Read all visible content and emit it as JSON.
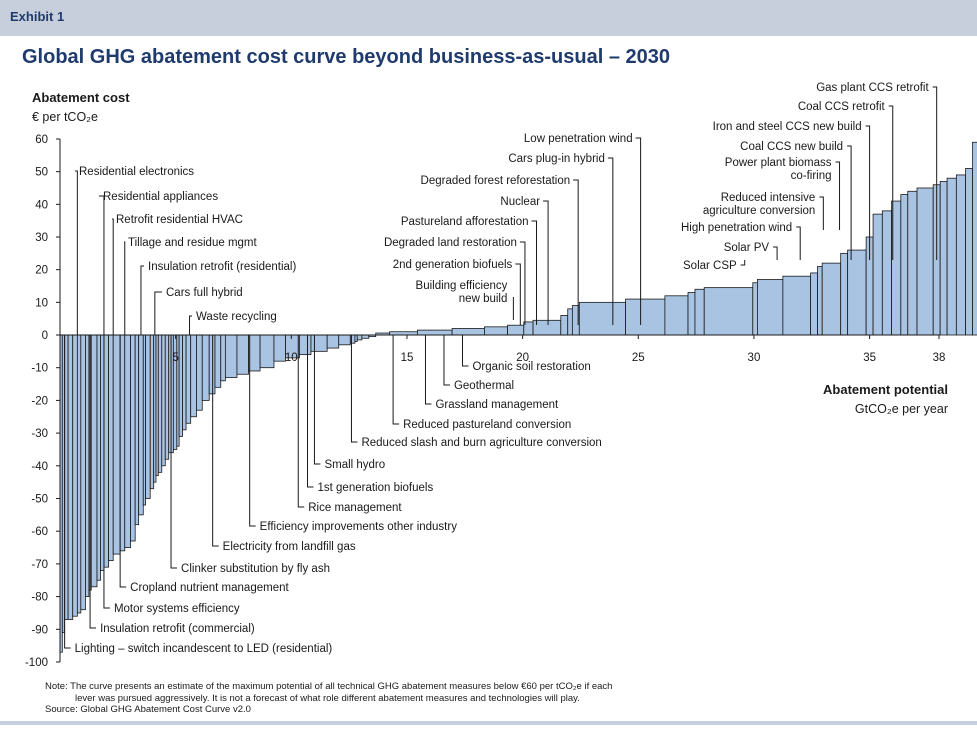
{
  "header": {
    "exhibit": "Exhibit 1"
  },
  "title": "Global GHG abatement cost curve beyond business-as-usual – 2030",
  "colors": {
    "bar_fill": "#a9c3e3",
    "bar_stroke": "#1a1a1a",
    "title": "#1f3b6e",
    "band": "#c6cfdb"
  },
  "chart_data": {
    "type": "bar",
    "variable_width": true,
    "ylabel": "Abatement cost",
    "ylabel_unit": "€ per tCO₂e",
    "xlabel": "Abatement potential",
    "xlabel_unit": "GtCO₂e per year",
    "ylim": [
      -100,
      60
    ],
    "xlim": [
      0,
      38
    ],
    "y_ticks": [
      60,
      50,
      40,
      30,
      20,
      10,
      0,
      -10,
      -20,
      -30,
      -40,
      -50,
      -60,
      -70,
      -80,
      -90,
      -100
    ],
    "x_ticks": [
      5,
      10,
      15,
      20,
      25,
      30,
      35,
      38
    ],
    "bars": [
      {
        "w": 0.1,
        "v": -97
      },
      {
        "w": 0.1,
        "v": -91
      },
      {
        "w": 0.15,
        "v": -87
      },
      {
        "w": 0.2,
        "v": -87
      },
      {
        "w": 0.2,
        "v": -86
      },
      {
        "w": 0.15,
        "v": -85
      },
      {
        "w": 0.2,
        "v": -84
      },
      {
        "w": 0.15,
        "v": -80
      },
      {
        "w": 0.1,
        "v": -78
      },
      {
        "w": 0.25,
        "v": -77
      },
      {
        "w": 0.15,
        "v": -75
      },
      {
        "w": 0.15,
        "v": -72
      },
      {
        "w": 0.2,
        "v": -71
      },
      {
        "w": 0.2,
        "v": -69
      },
      {
        "w": 0.3,
        "v": -67
      },
      {
        "w": 0.2,
        "v": -66
      },
      {
        "w": 0.25,
        "v": -65
      },
      {
        "w": 0.2,
        "v": -63
      },
      {
        "w": 0.15,
        "v": -58
      },
      {
        "w": 0.2,
        "v": -55
      },
      {
        "w": 0.1,
        "v": -52
      },
      {
        "w": 0.2,
        "v": -50
      },
      {
        "w": 0.15,
        "v": -47
      },
      {
        "w": 0.1,
        "v": -45
      },
      {
        "w": 0.1,
        "v": -43
      },
      {
        "w": 0.15,
        "v": -42
      },
      {
        "w": 0.15,
        "v": -40
      },
      {
        "w": 0.15,
        "v": -38
      },
      {
        "w": 0.2,
        "v": -36
      },
      {
        "w": 0.15,
        "v": -35
      },
      {
        "w": 0.1,
        "v": -34
      },
      {
        "w": 0.15,
        "v": -31
      },
      {
        "w": 0.15,
        "v": -29
      },
      {
        "w": 0.2,
        "v": -27
      },
      {
        "w": 0.25,
        "v": -25
      },
      {
        "w": 0.25,
        "v": -23
      },
      {
        "w": 0.3,
        "v": -20
      },
      {
        "w": 0.25,
        "v": -18
      },
      {
        "w": 0.25,
        "v": -16
      },
      {
        "w": 0.2,
        "v": -14
      },
      {
        "w": 0.5,
        "v": -13
      },
      {
        "w": 0.5,
        "v": -12
      },
      {
        "w": 0.5,
        "v": -11
      },
      {
        "w": 0.6,
        "v": -10
      },
      {
        "w": 0.5,
        "v": -8
      },
      {
        "w": 0.6,
        "v": -7
      },
      {
        "w": 0.5,
        "v": -6
      },
      {
        "w": 0.7,
        "v": -5
      },
      {
        "w": 0.5,
        "v": -4
      },
      {
        "w": 0.5,
        "v": -3
      },
      {
        "w": 0.2,
        "v": -2.5
      },
      {
        "w": 0.1,
        "v": -2
      },
      {
        "w": 0.2,
        "v": -1.5
      },
      {
        "w": 0.3,
        "v": -1
      },
      {
        "w": 0.3,
        "v": -0.5
      },
      {
        "w": 0.6,
        "v": 0.6
      },
      {
        "w": 1.2,
        "v": 1
      },
      {
        "w": 1.5,
        "v": 1.5
      },
      {
        "w": 1.4,
        "v": 2
      },
      {
        "w": 1.0,
        "v": 2.5
      },
      {
        "w": 0.7,
        "v": 3
      },
      {
        "w": 0.4,
        "v": 4
      },
      {
        "w": 1.2,
        "v": 4.5
      },
      {
        "w": 0.3,
        "v": 6
      },
      {
        "w": 0.2,
        "v": 8
      },
      {
        "w": 0.3,
        "v": 9
      },
      {
        "w": 2.0,
        "v": 10
      },
      {
        "w": 1.7,
        "v": 11
      },
      {
        "w": 1.0,
        "v": 12
      },
      {
        "w": 0.3,
        "v": 13
      },
      {
        "w": 0.4,
        "v": 14
      },
      {
        "w": 2.1,
        "v": 14.5
      },
      {
        "w": 0.2,
        "v": 16
      },
      {
        "w": 1.1,
        "v": 17
      },
      {
        "w": 1.2,
        "v": 18
      },
      {
        "w": 0.3,
        "v": 19
      },
      {
        "w": 0.2,
        "v": 21
      },
      {
        "w": 0.8,
        "v": 22
      },
      {
        "w": 0.3,
        "v": 25
      },
      {
        "w": 0.8,
        "v": 26
      },
      {
        "w": 0.3,
        "v": 30
      },
      {
        "w": 0.4,
        "v": 37
      },
      {
        "w": 0.4,
        "v": 38
      },
      {
        "w": 0.4,
        "v": 41
      },
      {
        "w": 0.3,
        "v": 43
      },
      {
        "w": 0.4,
        "v": 44
      },
      {
        "w": 0.7,
        "v": 45
      },
      {
        "w": 0.3,
        "v": 46
      },
      {
        "w": 0.3,
        "v": 47
      },
      {
        "w": 0.4,
        "v": 48
      },
      {
        "w": 0.4,
        "v": 49
      },
      {
        "w": 0.3,
        "v": 51
      },
      {
        "w": 0.3,
        "v": 59
      },
      {
        "w": 0.05,
        "v": 60
      }
    ],
    "labels_below": [
      {
        "text": "Residential electronics",
        "x": 0.75
      },
      {
        "text": "Residential appliances",
        "x": 1.9
      },
      {
        "text": "Retrofit residential HVAC",
        "x": 2.3
      },
      {
        "text": "Tillage and residue mgmt",
        "x": 2.8
      },
      {
        "text": "Insulation retrofit (residential)",
        "x": 3.5
      },
      {
        "text": "Cars full hybrid",
        "x": 4.1
      },
      {
        "text": "Waste recycling",
        "x": 5.6
      }
    ],
    "labels_above": [
      {
        "text": "Small hydro",
        "x": 11.0
      },
      {
        "text": "1st generation biofuels",
        "x": 10.7
      },
      {
        "text": "Rice management",
        "x": 10.3
      },
      {
        "text": "Efficiency improvements other industry",
        "x": 8.2
      },
      {
        "text": "Electricity from landfill gas",
        "x": 6.6
      },
      {
        "text": "Clinker substitution by fly ash",
        "x": 4.8
      },
      {
        "text": "Cropland nutrient management",
        "x": 2.6
      },
      {
        "text": "Motor systems efficiency",
        "x": 1.9
      },
      {
        "text": "Insulation retrofit (commercial)",
        "x": 1.3
      },
      {
        "text": "Lighting – switch incandescent to LED (residential)",
        "x": 0.2
      },
      {
        "text": "Reduced slash and burn agriculture conversion",
        "x": 12.6
      },
      {
        "text": "Reduced pastureland conversion",
        "x": 14.4
      },
      {
        "text": "Grassland management",
        "x": 15.8
      },
      {
        "text": "Geothermal",
        "x": 16.6
      },
      {
        "text": "Organic soil restoration",
        "x": 17.4
      }
    ],
    "callouts_left": [
      {
        "text": "Low penetration wind",
        "x": 25.1
      },
      {
        "text": "Cars plug-in hybrid",
        "x": 23.9
      },
      {
        "text": "Degraded forest reforestation",
        "x": 22.4
      },
      {
        "text": "Nuclear",
        "x": 21.1
      },
      {
        "text": "Pastureland afforestation",
        "x": 20.6
      },
      {
        "text": "Degraded land restoration",
        "x": 20.1
      },
      {
        "text": "2nd generation biofuels",
        "x": 19.9
      },
      {
        "text": "Building efficiency",
        "x": 19.6,
        "text2": "new build"
      }
    ],
    "callouts_right": [
      {
        "text": "Gas plant CCS retrofit",
        "x": 37.9
      },
      {
        "text": "Coal CCS retrofit",
        "x": 36.0
      },
      {
        "text": "Iron and steel CCS new build",
        "x": 35.0
      },
      {
        "text": "Coal CCS new build",
        "x": 34.2
      },
      {
        "text": "Power plant biomass",
        "x": 33.7,
        "text2": "co-firing"
      },
      {
        "text": "Reduced intensive",
        "x": 33.0,
        "text2": "agriculture conversion"
      },
      {
        "text": "High penetration wind",
        "x": 32.0
      },
      {
        "text": "Solar PV",
        "x": 31.0
      },
      {
        "text": "Solar CSP",
        "x": 29.6
      }
    ]
  },
  "footer": {
    "note_line1": "Note: The curve presents an estimate of the maximum potential of all technical GHG abatement measures below €60 per tCO₂e if each",
    "note_line2": "lever was pursued aggressively. It is not a forecast of what role different abatement measures and technologies will play.",
    "source": "Source: Global GHG Abatement Cost Curve v2.0"
  }
}
